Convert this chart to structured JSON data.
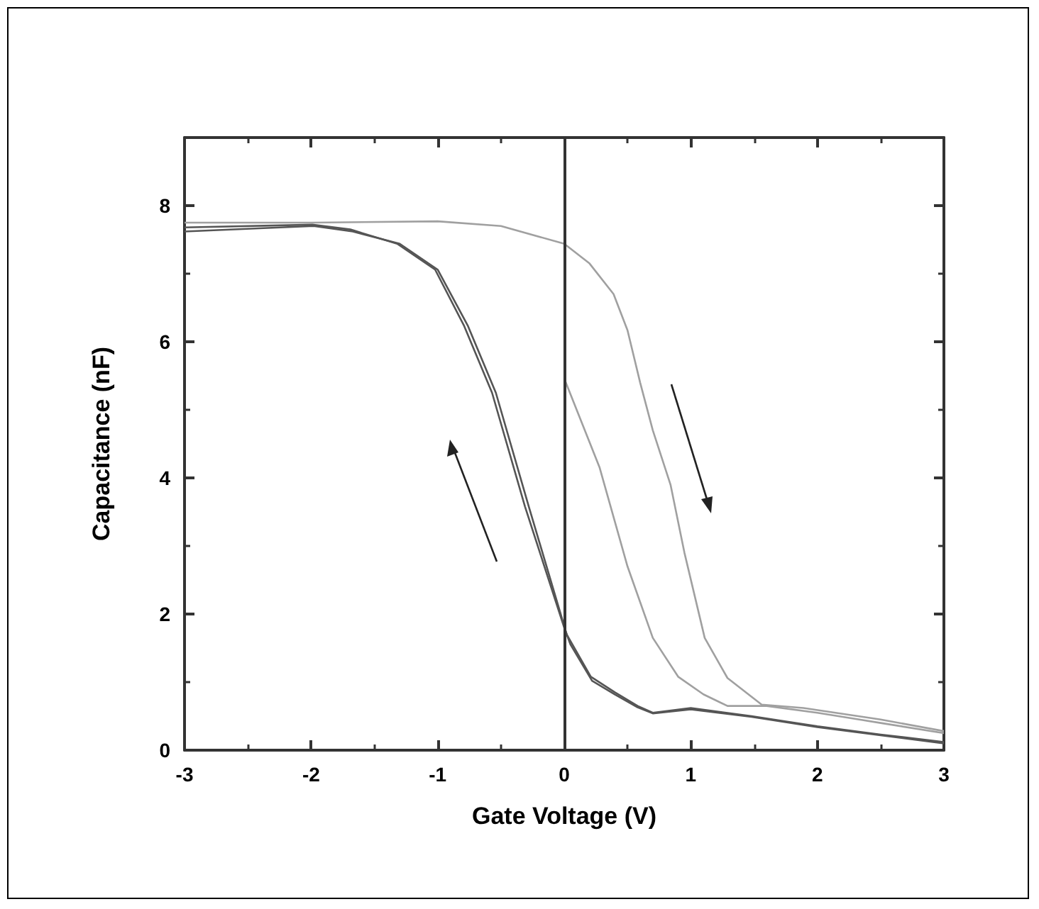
{
  "chart_data": {
    "type": "line",
    "xlabel": "Gate Voltage (V)",
    "ylabel": "Capacitance (nF)",
    "xlim": [
      -3,
      3
    ],
    "xticks": [
      -3,
      -2,
      -1,
      0,
      1,
      2,
      3
    ],
    "ylim": [
      0,
      9
    ],
    "yticks": [
      0,
      2,
      4,
      6,
      8
    ],
    "grid": false,
    "marker": "none",
    "line_style": "solid",
    "ref_lines": [
      {
        "axis": "x",
        "value": 0,
        "color": "#333333"
      }
    ],
    "series": [
      {
        "color": "#a0a0a0",
        "x": [
          -3,
          -2,
          -1,
          -0.5,
          0,
          0.2,
          0.39,
          0.5,
          0.6,
          0.7,
          0.84,
          0.95,
          1.11,
          1.29,
          1.56,
          1.89,
          2.5,
          3
        ],
        "values": [
          7.75,
          7.75,
          7.77,
          7.7,
          7.44,
          7.15,
          6.7,
          6.17,
          5.4,
          4.7,
          3.9,
          2.9,
          1.65,
          1.06,
          0.67,
          0.62,
          0.45,
          0.28
        ]
      },
      {
        "color": "#a0a0a0",
        "x": [
          0,
          0.28,
          0.5,
          0.7,
          0.9,
          1.1,
          1.29,
          1.6,
          2,
          2.5,
          3
        ],
        "values": [
          5.46,
          4.15,
          2.7,
          1.65,
          1.08,
          0.82,
          0.65,
          0.65,
          0.55,
          0.4,
          0.25
        ]
      },
      {
        "color": "#555555",
        "x": [
          3,
          2.5,
          2,
          1.48,
          1,
          0.7,
          0.58,
          0.4,
          0.21,
          0.02,
          0,
          -0.31,
          -0.57,
          -0.79,
          -1.02,
          -1.32,
          -1.69,
          -1.99,
          -3
        ],
        "values": [
          0.12,
          0.23,
          0.35,
          0.5,
          0.62,
          0.55,
          0.65,
          0.85,
          1.08,
          1.7,
          1.8,
          3.58,
          5.25,
          6.23,
          7.06,
          7.44,
          7.65,
          7.72,
          7.68
        ]
      },
      {
        "color": "#555555",
        "x": [
          3,
          2.5,
          2,
          1.48,
          1,
          0.7,
          0.58,
          0.4,
          0.22,
          0.05,
          0.02,
          -0.28,
          -0.54,
          -0.76,
          -1,
          -1.3,
          -1.67,
          -1.98,
          -3
        ],
        "values": [
          0.1,
          0.22,
          0.34,
          0.49,
          0.6,
          0.54,
          0.63,
          0.82,
          1.02,
          1.55,
          1.7,
          3.58,
          5.25,
          6.23,
          7.06,
          7.44,
          7.62,
          7.7,
          7.62
        ]
      }
    ]
  }
}
